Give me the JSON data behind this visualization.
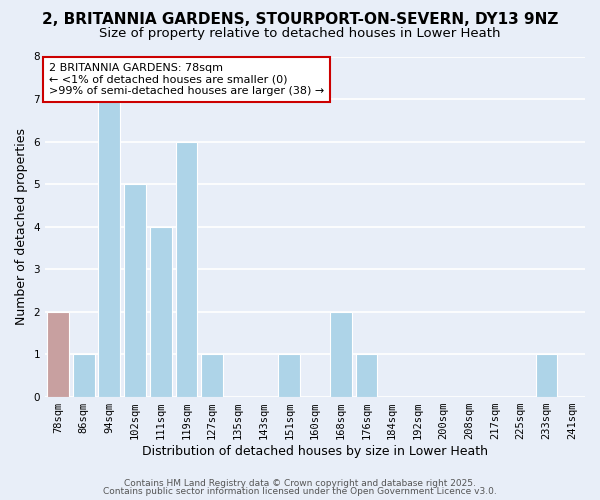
{
  "title": "2, BRITANNIA GARDENS, STOURPORT-ON-SEVERN, DY13 9NZ",
  "subtitle": "Size of property relative to detached houses in Lower Heath",
  "xlabel": "Distribution of detached houses by size in Lower Heath",
  "ylabel": "Number of detached properties",
  "categories": [
    "78sqm",
    "86sqm",
    "94sqm",
    "102sqm",
    "111sqm",
    "119sqm",
    "127sqm",
    "135sqm",
    "143sqm",
    "151sqm",
    "160sqm",
    "168sqm",
    "176sqm",
    "184sqm",
    "192sqm",
    "200sqm",
    "208sqm",
    "217sqm",
    "225sqm",
    "233sqm",
    "241sqm"
  ],
  "values": [
    2,
    1,
    7,
    5,
    4,
    6,
    1,
    0,
    0,
    1,
    0,
    2,
    1,
    0,
    0,
    0,
    0,
    0,
    0,
    1,
    0
  ],
  "bar_colors": [
    "#c8a0a0",
    "#aed4e8",
    "#aed4e8",
    "#aed4e8",
    "#aed4e8",
    "#aed4e8",
    "#aed4e8",
    "#aed4e8",
    "#aed4e8",
    "#aed4e8",
    "#aed4e8",
    "#aed4e8",
    "#aed4e8",
    "#aed4e8",
    "#aed4e8",
    "#aed4e8",
    "#aed4e8",
    "#aed4e8",
    "#aed4e8",
    "#aed4e8",
    "#aed4e8"
  ],
  "ylim": [
    0,
    8
  ],
  "yticks": [
    0,
    1,
    2,
    3,
    4,
    5,
    6,
    7,
    8
  ],
  "annotation_text": "2 BRITANNIA GARDENS: 78sqm\n← <1% of detached houses are smaller (0)\n>99% of semi-detached houses are larger (38) →",
  "annotation_box_facecolor": "#ffffff",
  "annotation_border_color": "#cc0000",
  "footer_line1": "Contains HM Land Registry data © Crown copyright and database right 2025.",
  "footer_line2": "Contains public sector information licensed under the Open Government Licence v3.0.",
  "background_color": "#e8eef8",
  "plot_bg_color": "#e8eef8",
  "grid_color": "#ffffff",
  "title_fontsize": 11,
  "subtitle_fontsize": 9.5,
  "axis_label_fontsize": 9,
  "tick_fontsize": 7.5,
  "annotation_fontsize": 8,
  "footer_fontsize": 6.5
}
